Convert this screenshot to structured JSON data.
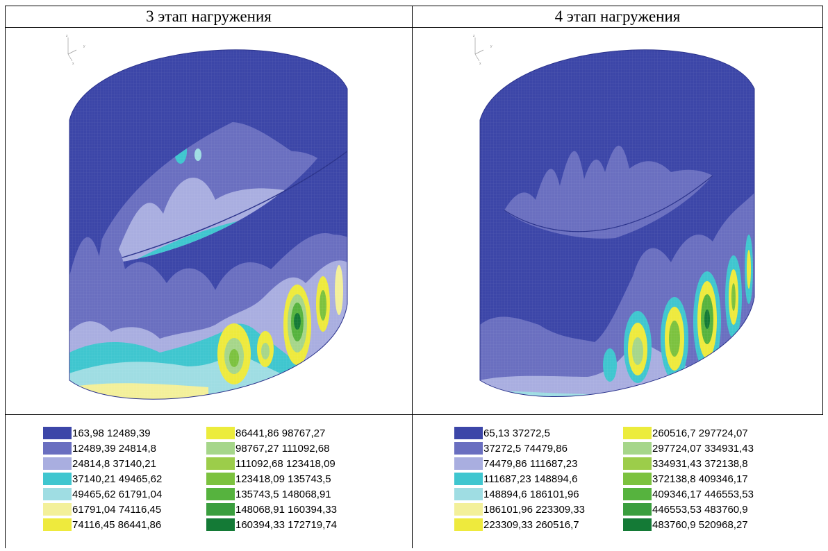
{
  "panels": [
    {
      "title": "3 этап нагружения",
      "axis_labels": [
        "z",
        "y",
        "x"
      ],
      "legend": [
        {
          "range": "163,98   12489,39",
          "color": "#3c46a8"
        },
        {
          "range": "12489,39   24814,8",
          "color": "#6a6fc0"
        },
        {
          "range": "24814,8   37140,21",
          "color": "#a9aee0"
        },
        {
          "range": "37140,21   49465,62",
          "color": "#3fc6cf"
        },
        {
          "range": "49465,62   61791,04",
          "color": "#9fdde3"
        },
        {
          "range": "61791,04   74116,45",
          "color": "#f3f09a"
        },
        {
          "range": "74116,45   86441,86",
          "color": "#eeea3d"
        },
        {
          "range": "86441,86   98767,27",
          "color": "#ecec3c"
        },
        {
          "range": "98767,27   111092,68",
          "color": "#a6d68a"
        },
        {
          "range": "111092,68   123418,09",
          "color": "#9ccd4a"
        },
        {
          "range": "123418,09   135743,5",
          "color": "#7cc23f"
        },
        {
          "range": "135743,5   148068,91",
          "color": "#56b33e"
        },
        {
          "range": "148068,91   160394,33",
          "color": "#3a9e3e"
        },
        {
          "range": "160394,33   172719,74",
          "color": "#147a36"
        }
      ]
    },
    {
      "title": "4 этап нагружения",
      "axis_labels": [
        "z",
        "y",
        "x"
      ],
      "legend": [
        {
          "range": "65,13   37272,5",
          "color": "#3c46a8"
        },
        {
          "range": "37272,5   74479,86",
          "color": "#6a6fc0"
        },
        {
          "range": "74479,86   111687,23",
          "color": "#a9aee0"
        },
        {
          "range": "111687,23   148894,6",
          "color": "#3fc6cf"
        },
        {
          "range": "148894,6   186101,96",
          "color": "#9fdde3"
        },
        {
          "range": "186101,96   223309,33",
          "color": "#f3f09a"
        },
        {
          "range": "223309,33   260516,7",
          "color": "#eeea3d"
        },
        {
          "range": "260516,7   297724,07",
          "color": "#ecec3c"
        },
        {
          "range": "297724,07   334931,43",
          "color": "#a6d68a"
        },
        {
          "range": "334931,43   372138,8",
          "color": "#9ccd4a"
        },
        {
          "range": "372138,8   409346,17",
          "color": "#7cc23f"
        },
        {
          "range": "409346,17   446553,53",
          "color": "#56b33e"
        },
        {
          "range": "446553,53   483760,9",
          "color": "#3a9e3e"
        },
        {
          "range": "483760,9   520968,27",
          "color": "#147a36"
        }
      ]
    }
  ]
}
